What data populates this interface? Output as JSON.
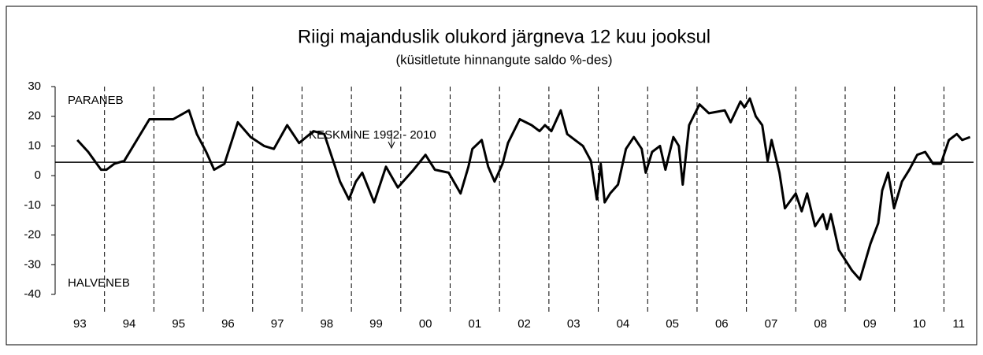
{
  "chart_data": {
    "type": "line",
    "title": "Riigi majanduslik olukord järgneva 12 kuu jooksul",
    "subtitle": "(küsitletute hinnangute saldo %-des)",
    "annotations": [
      "PARANEB",
      "HALVENEB",
      "KESKMINE 1992 - 2010"
    ],
    "average": 4.5,
    "xlim": [
      1993,
      2011.6
    ],
    "xticks": [
      {
        "value": 1993.5,
        "label": "93"
      },
      {
        "value": 1994.5,
        "label": "94"
      },
      {
        "value": 1995.5,
        "label": "95"
      },
      {
        "value": 1996.5,
        "label": "96"
      },
      {
        "value": 1997.5,
        "label": "97"
      },
      {
        "value": 1998.5,
        "label": "98"
      },
      {
        "value": 1999.5,
        "label": "99"
      },
      {
        "value": 2000.5,
        "label": "00"
      },
      {
        "value": 2001.5,
        "label": "01"
      },
      {
        "value": 2002.5,
        "label": "02"
      },
      {
        "value": 2003.5,
        "label": "03"
      },
      {
        "value": 2004.5,
        "label": "04"
      },
      {
        "value": 2005.5,
        "label": "05"
      },
      {
        "value": 2006.5,
        "label": "06"
      },
      {
        "value": 2007.5,
        "label": "07"
      },
      {
        "value": 2008.5,
        "label": "08"
      },
      {
        "value": 2009.5,
        "label": "09"
      },
      {
        "value": 2010.5,
        "label": "10"
      },
      {
        "value": 2011.3,
        "label": "11"
      }
    ],
    "ylim": [
      -40,
      30
    ],
    "yticks": [
      -40,
      -30,
      -20,
      -10,
      0,
      10,
      20,
      30
    ],
    "x": [
      1993.45,
      1993.67,
      1993.93,
      1994.04,
      1994.2,
      1994.4,
      1994.91,
      1995.39,
      1995.71,
      1995.87,
      1996.06,
      1996.22,
      1996.43,
      1996.7,
      1996.96,
      1997.23,
      1997.43,
      1997.7,
      1997.94,
      1998.23,
      1998.45,
      1998.61,
      1998.77,
      1998.95,
      1999.09,
      1999.22,
      1999.46,
      1999.7,
      1999.94,
      2000.26,
      2000.5,
      2000.69,
      2000.97,
      2001.21,
      2001.37,
      2001.45,
      2001.64,
      2001.77,
      2001.9,
      2002.06,
      2002.17,
      2002.41,
      2002.65,
      2002.81,
      2002.92,
      2003.05,
      2003.24,
      2003.37,
      2003.53,
      2003.69,
      2003.85,
      2003.97,
      2004.05,
      2004.13,
      2004.24,
      2004.4,
      2004.56,
      2004.72,
      2004.88,
      2004.96,
      2005.09,
      2005.25,
      2005.36,
      2005.52,
      2005.63,
      2005.71,
      2005.84,
      2006.05,
      2006.24,
      2006.56,
      2006.68,
      2006.88,
      2006.96,
      2007.07,
      2007.19,
      2007.32,
      2007.43,
      2007.51,
      2007.67,
      2007.78,
      2008.0,
      2008.12,
      2008.23,
      2008.39,
      2008.55,
      2008.63,
      2008.71,
      2008.87,
      2009.14,
      2009.3,
      2009.51,
      2009.67,
      2009.75,
      2009.87,
      2009.99,
      2010.15,
      2010.3,
      2010.46,
      2010.62,
      2010.78,
      2010.94,
      2011.1,
      2011.26,
      2011.37,
      2011.53
    ],
    "series": [
      {
        "name": "saldo",
        "color": "#000000",
        "values": [
          12,
          8,
          2,
          2,
          4,
          5,
          19,
          19,
          22,
          14,
          8,
          2,
          4,
          18,
          13,
          10,
          9,
          17,
          11,
          15,
          14,
          6,
          -2,
          -8,
          -2,
          1,
          -9,
          3,
          -4,
          2,
          7,
          2,
          1,
          -6,
          3,
          9,
          12,
          3,
          -2,
          4,
          11,
          19,
          17,
          15,
          17,
          15,
          22,
          14,
          12,
          10,
          5,
          -8,
          4,
          -9,
          -6,
          -3,
          9,
          13,
          9,
          1,
          8,
          10,
          2,
          13,
          10,
          -3,
          17,
          24,
          21,
          22,
          18,
          25,
          23,
          26,
          20,
          17,
          5,
          12,
          1,
          -11,
          -6,
          -12,
          -6,
          -17,
          -13,
          -18,
          -13,
          -25,
          -32,
          -35,
          -23,
          -16,
          -5,
          1,
          -11,
          -2,
          2,
          7,
          8,
          4,
          4,
          12,
          14,
          12,
          13
        ]
      }
    ]
  }
}
